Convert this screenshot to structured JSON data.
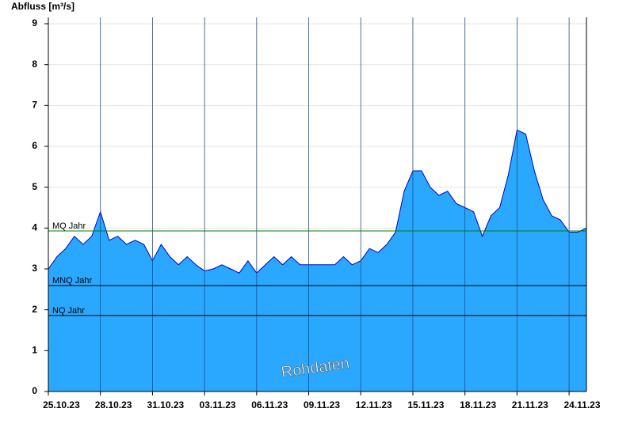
{
  "chart_data": {
    "type": "area",
    "y_label": "Abfluss [m³/s]",
    "watermark": "Rohdaten",
    "color": "#2aa8ff",
    "line_color": "#0000c8",
    "grid": true,
    "xlim": [
      0,
      31
    ],
    "ylim": [
      0,
      9
    ],
    "xticks": [
      {
        "value": 0,
        "label": "25.10.23"
      },
      {
        "value": 3,
        "label": "28.10.23"
      },
      {
        "value": 6,
        "label": "31.10.23"
      },
      {
        "value": 9,
        "label": "03.11.23"
      },
      {
        "value": 12,
        "label": "06.11.23"
      },
      {
        "value": 15,
        "label": "09.11.23"
      },
      {
        "value": 18,
        "label": "12.11.23"
      },
      {
        "value": 21,
        "label": "15.11.23"
      },
      {
        "value": 24,
        "label": "18.11.23"
      },
      {
        "value": 27,
        "label": "21.11.23"
      },
      {
        "value": 30,
        "label": "24.11.23"
      }
    ],
    "yticks": [
      0,
      1,
      2,
      3,
      4,
      5,
      6,
      7,
      8,
      9
    ],
    "x": [
      0,
      0.5,
      1,
      1.5,
      2,
      2.5,
      3,
      3.5,
      4,
      4.5,
      5,
      5.5,
      6,
      6.5,
      7,
      7.5,
      8,
      8.5,
      9,
      9.5,
      10,
      10.5,
      11,
      11.5,
      12,
      12.5,
      13,
      13.5,
      14,
      14.5,
      15,
      15.5,
      16,
      16.5,
      17,
      17.5,
      18,
      18.5,
      19,
      19.5,
      20,
      20.5,
      21,
      21.5,
      22,
      22.5,
      23,
      23.5,
      24,
      24.5,
      25,
      25.5,
      26,
      26.5,
      27,
      27.5,
      28,
      28.5,
      29,
      29.5,
      30,
      30.5,
      31
    ],
    "values": [
      3.0,
      3.3,
      3.5,
      3.8,
      3.6,
      3.8,
      4.4,
      3.7,
      3.8,
      3.6,
      3.7,
      3.6,
      3.2,
      3.6,
      3.3,
      3.1,
      3.3,
      3.1,
      2.95,
      3.0,
      3.1,
      3.0,
      2.9,
      3.2,
      2.9,
      3.1,
      3.3,
      3.1,
      3.3,
      3.1,
      3.1,
      3.1,
      3.1,
      3.1,
      3.3,
      3.1,
      3.2,
      3.5,
      3.4,
      3.6,
      3.9,
      4.9,
      5.4,
      5.4,
      5.0,
      4.8,
      4.9,
      4.6,
      4.5,
      4.4,
      3.8,
      4.3,
      4.5,
      5.3,
      6.4,
      6.3,
      5.4,
      4.7,
      4.3,
      4.2,
      3.9,
      3.9,
      4.0
    ],
    "reference_lines": [
      {
        "name": "MQ Jahr",
        "value": 3.93,
        "color": "#008000"
      },
      {
        "name": "MNQ Jahr",
        "value": 2.59,
        "color": "#000000"
      },
      {
        "name": "NQ Jahr",
        "value": 1.86,
        "color": "#000000"
      }
    ]
  }
}
